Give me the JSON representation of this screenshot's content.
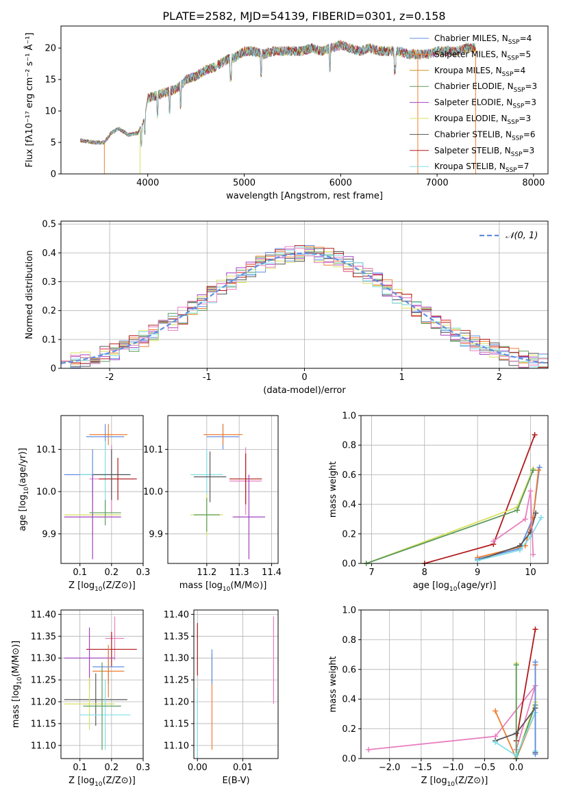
{
  "figure": {
    "title": "PLATE=2582, MJD=54139, FIBERID=0301, z=0.158"
  },
  "chart_data": [
    {
      "id": "spectrum",
      "type": "line",
      "title": "PLATE=2582, MJD=54139, FIBERID=0301, z=0.158",
      "xlabel": "wavelength [Angstrom, rest frame]",
      "ylabel": "Flux [fλ10⁻¹⁷ erg cm⁻² s⁻¹ Å⁻¹]",
      "xlim": [
        3100,
        8150
      ],
      "ylim": [
        0,
        23.5
      ],
      "xticks": [
        4000,
        5000,
        6000,
        7000,
        8000
      ],
      "yticks": [
        0,
        5,
        10,
        15,
        20
      ],
      "grid": false,
      "legend_position": "right",
      "continuum": {
        "x": [
          3300,
          3450,
          3550,
          3620,
          3700,
          3800,
          3900,
          3960,
          4000,
          4100,
          4200,
          4300,
          4400,
          4500,
          4600,
          4700,
          4800,
          4900,
          5000,
          5100,
          5200,
          5300,
          5400,
          5500,
          5600,
          5700,
          5800,
          5900,
          6000,
          6100,
          6200,
          6300,
          6400,
          6500,
          6600,
          6700,
          6800,
          6900,
          7000,
          7100,
          7200,
          7300,
          7400
        ],
        "y": [
          5.3,
          5.0,
          5.0,
          6.5,
          7.2,
          6.2,
          6.5,
          8.5,
          12.0,
          12.5,
          13.0,
          13.5,
          15.0,
          15.5,
          16.5,
          17.0,
          18.0,
          18.5,
          19.5,
          19.5,
          19.0,
          19.5,
          19.5,
          19.5,
          19.5,
          20.0,
          19.5,
          20.0,
          20.5,
          20.0,
          19.5,
          20.0,
          19.5,
          19.5,
          19.5,
          19.0,
          19.0,
          19.0,
          19.5,
          19.5,
          19.5,
          20.0,
          20.0
        ]
      },
      "series": [
        {
          "name": "Chabrier MILES, N_SSP=4",
          "label_main": "Chabrier MILES, N",
          "label_sub": "SSP",
          "label_tail": "=4",
          "color": "#5f8ee0"
        },
        {
          "name": "Salpeter MILES, N_SSP=5",
          "label_main": "Salpeter MILES, N",
          "label_sub": "SSP",
          "label_tail": "=5",
          "color": "#ee7d32"
        },
        {
          "name": "Kroupa MILES, N_SSP=4",
          "label_main": "Kroupa MILES, N",
          "label_sub": "SSP",
          "label_tail": "=4",
          "color": "#c8901e"
        },
        {
          "name": "Chabrier ELODIE, N_SSP=3",
          "label_main": "Chabrier ELODIE, N",
          "label_sub": "SSP",
          "label_tail": "=3",
          "color": "#5a9a5a"
        },
        {
          "name": "Salpeter ELODIE, N_SSP=3",
          "label_main": "Salpeter ELODIE, N",
          "label_sub": "SSP",
          "label_tail": "=3",
          "color": "#a040c0"
        },
        {
          "name": "Kroupa ELODIE, N_SSP=3",
          "label_main": "Kroupa ELODIE, N",
          "label_sub": "SSP",
          "label_tail": "=3",
          "color": "#d8e060"
        },
        {
          "name": "Chabrier STELIB, N_SSP=6",
          "label_main": "Chabrier STELIB, N",
          "label_sub": "SSP",
          "label_tail": "=6",
          "color": "#555555"
        },
        {
          "name": "Salpeter STELIB, N_SSP=3",
          "label_main": "Salpeter STELIB, N",
          "label_sub": "SSP",
          "label_tail": "=3",
          "color": "#b01818"
        },
        {
          "name": "Kroupa STELIB, N_SSP=7",
          "label_main": "Kroupa STELIB, N",
          "label_sub": "SSP",
          "label_tail": "=7",
          "color": "#80dde8"
        }
      ]
    },
    {
      "id": "residuals",
      "type": "histogram",
      "xlabel": "(data-model)/error",
      "ylabel": "Normed distribution",
      "xlim": [
        -2.5,
        2.5
      ],
      "ylim": [
        0,
        0.51
      ],
      "xticks": [
        -2,
        -1,
        0,
        1,
        2
      ],
      "yticks": [
        0.0,
        0.1,
        0.2,
        0.3,
        0.4,
        0.5
      ],
      "grid": true,
      "reference_curve": {
        "name": "N(0,1)",
        "label": "𝒩(0, 1)",
        "color": "#5f8ee0",
        "style": "dashed"
      },
      "histogram_series_colors": [
        "#5f8ee0",
        "#ee7d32",
        "#5a9a5a",
        "#a040c0",
        "#d8e060",
        "#555555",
        "#b01818",
        "#80dde8",
        "#e87fbf"
      ],
      "legend_position": "top-right"
    },
    {
      "id": "age-vs-Z",
      "type": "errorbar",
      "xlabel_main": "Z [log",
      "xlabel_sub": "10",
      "xlabel_tail": "(Z/Z⊙)]",
      "ylabel_main": "age  [log",
      "ylabel_sub": "10",
      "ylabel_tail": "(age/yr)]",
      "xlim": [
        0.04,
        0.3
      ],
      "ylim": [
        9.83,
        10.18
      ],
      "xticks": [
        0.1,
        0.2,
        0.3
      ],
      "xticklabels": [
        "0.1",
        "0.2",
        "0.3"
      ],
      "yticks": [
        9.9,
        10.0,
        10.1
      ],
      "yticklabels": [
        "9.9",
        "10.0",
        "10.1"
      ],
      "grid": true,
      "points": [
        {
          "x": 0.18,
          "y": 10.13,
          "xerr": 0.06,
          "yerr": 0.03,
          "color": "#5f8ee0"
        },
        {
          "x": 0.19,
          "y": 10.135,
          "xerr": 0.06,
          "yerr": 0.025,
          "color": "#ee7d32"
        },
        {
          "x": 0.14,
          "y": 10.04,
          "xerr": 0.09,
          "yerr": 0.06,
          "color": "#5f8ee0"
        },
        {
          "x": 0.18,
          "y": 10.04,
          "xerr": 0.08,
          "yerr": 0.08,
          "color": "#80dde8"
        },
        {
          "x": 0.2,
          "y": 10.03,
          "xerr": 0.07,
          "yerr": 0.08,
          "color": "#e87fbf"
        },
        {
          "x": 0.22,
          "y": 10.03,
          "xerr": 0.06,
          "yerr": 0.05,
          "color": "#b01818"
        },
        {
          "x": 0.2,
          "y": 10.04,
          "xerr": 0.06,
          "yerr": 0.06,
          "color": "#555555"
        },
        {
          "x": 0.14,
          "y": 9.945,
          "xerr": 0.09,
          "yerr": 0.05,
          "color": "#d8e060"
        },
        {
          "x": 0.14,
          "y": 9.94,
          "xerr": 0.09,
          "yerr": 0.1,
          "color": "#a040c0"
        },
        {
          "x": 0.18,
          "y": 9.95,
          "xerr": 0.05,
          "yerr": 0.03,
          "color": "#5a9a5a"
        }
      ]
    },
    {
      "id": "age-vs-mass",
      "type": "errorbar",
      "xlabel_main": "mass [log",
      "xlabel_sub": "10",
      "xlabel_tail": "(M/M⊙)]",
      "xlim": [
        11.08,
        11.42
      ],
      "ylim": [
        9.83,
        10.18
      ],
      "xticks": [
        11.2,
        11.3,
        11.4
      ],
      "xticklabels": [
        "11.2",
        "11.3",
        "11.4"
      ],
      "yticks": [
        9.9,
        10.0,
        10.1
      ],
      "yticklabels": [
        "9.9",
        "10.0",
        "10.1"
      ],
      "grid": true,
      "points": [
        {
          "x": 11.25,
          "y": 10.13,
          "xerr": 0.05,
          "yerr": 0.03,
          "color": "#5f8ee0"
        },
        {
          "x": 11.25,
          "y": 10.135,
          "xerr": 0.06,
          "yerr": 0.025,
          "color": "#ee7d32"
        },
        {
          "x": 11.2,
          "y": 10.04,
          "xerr": 0.05,
          "yerr": 0.06,
          "color": "#80dde8"
        },
        {
          "x": 11.21,
          "y": 10.035,
          "xerr": 0.05,
          "yerr": 0.06,
          "color": "#555555"
        },
        {
          "x": 11.32,
          "y": 10.025,
          "xerr": 0.05,
          "yerr": 0.08,
          "color": "#e87fbf"
        },
        {
          "x": 11.32,
          "y": 10.03,
          "xerr": 0.05,
          "yerr": 0.06,
          "color": "#b01818"
        },
        {
          "x": 11.33,
          "y": 9.94,
          "xerr": 0.05,
          "yerr": 0.1,
          "color": "#a040c0"
        },
        {
          "x": 11.2,
          "y": 9.945,
          "xerr": 0.05,
          "yerr": 0.05,
          "color": "#d8e060"
        },
        {
          "x": 11.2,
          "y": 9.945,
          "xerr": 0.04,
          "yerr": 0.04,
          "color": "#5a9a5a"
        }
      ]
    },
    {
      "id": "weight-vs-age",
      "type": "line",
      "xlabel_main": "age  [log",
      "xlabel_sub": "10",
      "xlabel_tail": "(age/yr)]",
      "ylabel": "mass weight",
      "xlim": [
        6.8,
        10.33
      ],
      "ylim": [
        0,
        1.0
      ],
      "xticks": [
        7,
        8,
        9,
        10
      ],
      "xticklabels": [
        "7",
        "8",
        "9",
        "10"
      ],
      "yticks": [
        0,
        0.2,
        0.4,
        0.6,
        0.8,
        1.0
      ],
      "yticklabels": [
        "0.0",
        "0.2",
        "0.4",
        "0.6",
        "0.8",
        "1.0"
      ],
      "grid": true,
      "series": [
        {
          "color": "#b01818",
          "x": [
            8.0,
            9.3,
            10.08
          ],
          "y": [
            0.0,
            0.13,
            0.87
          ]
        },
        {
          "color": "#d8e060",
          "x": [
            6.9,
            9.75,
            10.05
          ],
          "y": [
            0.0,
            0.38,
            0.64
          ]
        },
        {
          "color": "#5a9a5a",
          "x": [
            6.9,
            9.75,
            10.05
          ],
          "y": [
            0.0,
            0.36,
            0.63
          ]
        },
        {
          "color": "#5f8ee0",
          "x": [
            9.0,
            9.8,
            10.05,
            10.17
          ],
          "y": [
            0.03,
            0.1,
            0.31,
            0.65
          ]
        },
        {
          "color": "#ee7d32",
          "x": [
            9.0,
            9.9,
            10.05,
            10.15
          ],
          "y": [
            0.04,
            0.12,
            0.31,
            0.63
          ]
        },
        {
          "color": "#555555",
          "x": [
            9.0,
            9.8,
            10.0,
            10.1
          ],
          "y": [
            0.02,
            0.12,
            0.21,
            0.34
          ]
        },
        {
          "color": "#80dde8",
          "x": [
            9.0,
            9.8,
            10.0,
            10.2
          ],
          "y": [
            0.02,
            0.09,
            0.18,
            0.31
          ]
        },
        {
          "color": "#e87fbf",
          "x": [
            9.3,
            9.9,
            10.0,
            10.05
          ],
          "y": [
            0.15,
            0.3,
            0.49,
            0.06
          ]
        }
      ]
    },
    {
      "id": "mass-vs-Z",
      "type": "errorbar",
      "xlabel_main": "Z [log",
      "xlabel_sub": "10",
      "xlabel_tail": "(Z/Z⊙)]",
      "ylabel_main": "mass [log",
      "ylabel_sub": "10",
      "ylabel_tail": "(M/M⊙)]",
      "xlim": [
        0.04,
        0.3
      ],
      "ylim": [
        11.07,
        11.41
      ],
      "xticks": [
        0.1,
        0.2,
        0.3
      ],
      "xticklabels": [
        "0.1",
        "0.2",
        "0.3"
      ],
      "yticks": [
        11.1,
        11.15,
        11.2,
        11.25,
        11.3,
        11.35,
        11.4
      ],
      "yticklabels": [
        "11.10",
        "11.15",
        "11.20",
        "11.25",
        "11.30",
        "11.35",
        "11.40"
      ],
      "grid": true,
      "points": [
        {
          "x": 0.21,
          "y": 11.345,
          "xerr": 0.03,
          "yerr": 0.05,
          "color": "#e87fbf"
        },
        {
          "x": 0.2,
          "y": 11.32,
          "xerr": 0.08,
          "yerr": 0.04,
          "color": "#b01818"
        },
        {
          "x": 0.13,
          "y": 11.3,
          "xerr": 0.08,
          "yerr": 0.07,
          "color": "#a040c0"
        },
        {
          "x": 0.19,
          "y": 11.28,
          "xerr": 0.05,
          "yerr": 0.04,
          "color": "#5f8ee0"
        },
        {
          "x": 0.19,
          "y": 11.27,
          "xerr": 0.05,
          "yerr": 0.06,
          "color": "#ee7d32"
        },
        {
          "x": 0.15,
          "y": 11.205,
          "xerr": 0.1,
          "yerr": 0.06,
          "color": "#555555"
        },
        {
          "x": 0.13,
          "y": 11.195,
          "xerr": 0.08,
          "yerr": 0.06,
          "color": "#d8e060"
        },
        {
          "x": 0.18,
          "y": 11.17,
          "xerr": 0.08,
          "yerr": 0.08,
          "color": "#80dde8"
        },
        {
          "x": 0.17,
          "y": 11.19,
          "xerr": 0.06,
          "yerr": 0.1,
          "color": "#5a9a5a"
        }
      ]
    },
    {
      "id": "mass-vs-EBV",
      "type": "errorbar",
      "xlabel": "E(B-V)",
      "xlim": [
        -0.0008,
        0.0178
      ],
      "ylim": [
        11.07,
        11.41
      ],
      "xticks": [
        0.0,
        0.01
      ],
      "xticklabels": [
        "0.00",
        "0.01"
      ],
      "yticks": [
        11.1,
        11.15,
        11.2,
        11.25,
        11.3,
        11.35,
        11.4
      ],
      "yticklabels": [
        "11.10",
        "11.15",
        "11.20",
        "11.25",
        "11.30",
        "11.35",
        "11.40"
      ],
      "grid": true,
      "points": [
        {
          "x": 0.0,
          "y": 11.32,
          "xerr": 0,
          "yerr": 0.06,
          "color": "#b01818"
        },
        {
          "x": 0.0,
          "y": 11.15,
          "xerr": 0,
          "yerr": 0.08,
          "color": "#80dde8"
        },
        {
          "x": 0.0032,
          "y": 11.2,
          "xerr": 0,
          "yerr": 0.11,
          "color": "#ee7d32"
        },
        {
          "x": 0.0032,
          "y": 11.28,
          "xerr": 0,
          "yerr": 0.04,
          "color": "#5f8ee0"
        },
        {
          "x": 0.0168,
          "y": 11.295,
          "xerr": 0,
          "yerr": 0.1,
          "color": "#e87fbf"
        }
      ]
    },
    {
      "id": "weight-vs-Z",
      "type": "line",
      "xlabel_main": "Z [log",
      "xlabel_sub": "10",
      "xlabel_tail": "(Z/Z⊙)]",
      "ylabel": "mass weight",
      "xlim": [
        -2.45,
        0.5
      ],
      "ylim": [
        0,
        1.0
      ],
      "xticks": [
        -2.0,
        -1.5,
        -1.0,
        -0.5,
        0.0
      ],
      "xticklabels": [
        "−2.0",
        "−1.5",
        "−1.0",
        "−0.5",
        "0.0"
      ],
      "yticks": [
        0,
        0.2,
        0.4,
        0.6,
        0.8,
        1.0
      ],
      "yticklabels": [
        "0.0",
        "0.2",
        "0.4",
        "0.6",
        "0.8",
        "1.0"
      ],
      "grid": true,
      "series": [
        {
          "color": "#e87fbf",
          "x": [
            -2.33,
            -0.33,
            0.3,
            0.0
          ],
          "y": [
            0.06,
            0.15,
            0.49,
            0.06
          ]
        },
        {
          "color": "#b01818",
          "x": [
            0.0,
            0.3
          ],
          "y": [
            0.12,
            0.87
          ]
        },
        {
          "color": "#ee7d32",
          "x": [
            -0.33,
            0.0,
            0.3,
            0.3
          ],
          "y": [
            0.32,
            0.0,
            0.31,
            0.63
          ]
        },
        {
          "color": "#d8e060",
          "x": [
            0.0,
            0.0,
            0.3
          ],
          "y": [
            0.64,
            0.0,
            0.38
          ]
        },
        {
          "color": "#5a9a5a",
          "x": [
            0.0,
            0.0,
            0.3
          ],
          "y": [
            0.63,
            0.0,
            0.36
          ]
        },
        {
          "color": "#555555",
          "x": [
            -0.33,
            0.0,
            0.3,
            0.3
          ],
          "y": [
            0.12,
            0.17,
            0.34,
            0.04
          ]
        },
        {
          "color": "#80dde8",
          "x": [
            -0.33,
            0.0,
            0.3,
            0.3
          ],
          "y": [
            0.11,
            0.02,
            0.31,
            0.05
          ]
        },
        {
          "color": "#5f8ee0",
          "x": [
            0.3,
            0.3
          ],
          "y": [
            0.65,
            0.03
          ]
        }
      ]
    }
  ]
}
